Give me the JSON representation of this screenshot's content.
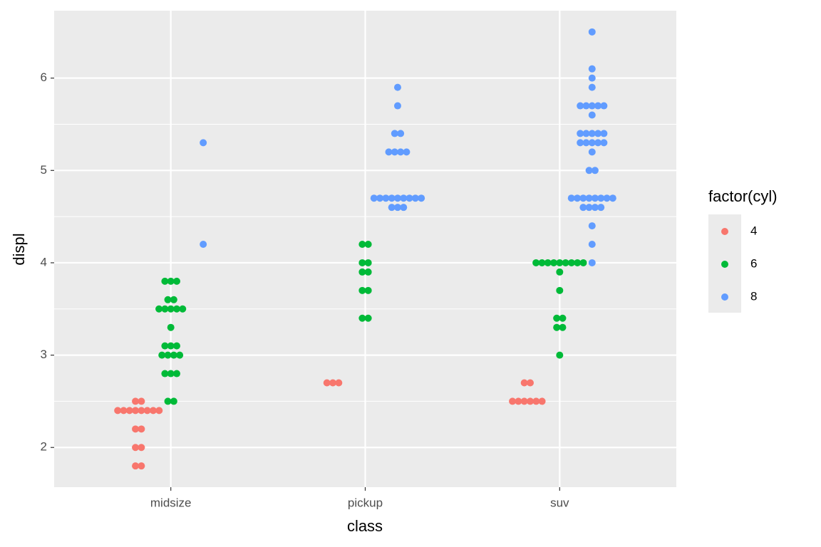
{
  "chart_data": {
    "type": "dodged-dot",
    "x_label": "class",
    "y_label": "displ",
    "categories": [
      "midsize",
      "pickup",
      "suv"
    ],
    "legend_title": "factor(cyl)",
    "legend_position": "right",
    "ylim": [
      1.57,
      6.73
    ],
    "yticks": [
      2,
      3,
      4,
      5,
      6
    ],
    "grid": true,
    "minor_grid": true,
    "series": [
      {
        "name": "4",
        "color": "#F8766D",
        "x": [
          "midsize",
          "midsize",
          "midsize",
          "midsize",
          "midsize",
          "midsize",
          "midsize",
          "midsize",
          "midsize",
          "midsize",
          "midsize",
          "midsize",
          "midsize",
          "midsize",
          "midsize",
          "midsize",
          "pickup",
          "pickup",
          "pickup",
          "suv",
          "suv",
          "suv",
          "suv",
          "suv",
          "suv",
          "suv",
          "suv"
        ],
        "values": [
          2.5,
          2.5,
          2.4,
          2.4,
          2.4,
          2.4,
          2.4,
          2.4,
          2.4,
          2.4,
          2.2,
          2.2,
          2.0,
          2.0,
          1.8,
          1.8,
          2.7,
          2.7,
          2.7,
          2.7,
          2.7,
          2.5,
          2.5,
          2.5,
          2.5,
          2.5,
          2.5
        ]
      },
      {
        "name": "6",
        "color": "#00BA38",
        "x": [
          "midsize",
          "midsize",
          "midsize",
          "midsize",
          "midsize",
          "midsize",
          "midsize",
          "midsize",
          "midsize",
          "midsize",
          "midsize",
          "midsize",
          "midsize",
          "midsize",
          "midsize",
          "midsize",
          "midsize",
          "midsize",
          "midsize",
          "midsize",
          "midsize",
          "midsize",
          "midsize",
          "pickup",
          "pickup",
          "pickup",
          "pickup",
          "pickup",
          "pickup",
          "pickup",
          "pickup",
          "pickup",
          "pickup",
          "suv",
          "suv",
          "suv",
          "suv",
          "suv",
          "suv",
          "suv",
          "suv",
          "suv",
          "suv",
          "suv",
          "suv",
          "suv",
          "suv",
          "suv",
          "suv"
        ],
        "values": [
          3.8,
          3.8,
          3.8,
          3.6,
          3.6,
          3.5,
          3.5,
          3.5,
          3.5,
          3.5,
          3.3,
          3.1,
          3.1,
          3.1,
          3.0,
          3.0,
          3.0,
          3.0,
          2.8,
          2.8,
          2.8,
          2.5,
          2.5,
          4.2,
          4.2,
          4.0,
          4.0,
          3.9,
          3.9,
          3.7,
          3.7,
          3.4,
          3.4,
          4.0,
          4.0,
          4.0,
          4.0,
          4.0,
          4.0,
          4.0,
          4.0,
          4.0,
          3.9,
          3.7,
          3.4,
          3.4,
          3.3,
          3.3,
          3.0
        ]
      },
      {
        "name": "8",
        "color": "#619CFF",
        "x": [
          "midsize",
          "midsize",
          "pickup",
          "pickup",
          "pickup",
          "pickup",
          "pickup",
          "pickup",
          "pickup",
          "pickup",
          "pickup",
          "pickup",
          "pickup",
          "pickup",
          "pickup",
          "pickup",
          "pickup",
          "pickup",
          "pickup",
          "pickup",
          "pickup",
          "pickup",
          "suv",
          "suv",
          "suv",
          "suv",
          "suv",
          "suv",
          "suv",
          "suv",
          "suv",
          "suv",
          "suv",
          "suv",
          "suv",
          "suv",
          "suv",
          "suv",
          "suv",
          "suv",
          "suv",
          "suv",
          "suv",
          "suv",
          "suv",
          "suv",
          "suv",
          "suv",
          "suv",
          "suv",
          "suv",
          "suv",
          "suv",
          "suv",
          "suv",
          "suv",
          "suv",
          "suv",
          "suv",
          "suv"
        ],
        "values": [
          5.3,
          4.2,
          5.9,
          5.7,
          5.4,
          5.4,
          5.2,
          5.2,
          5.2,
          5.2,
          4.7,
          4.7,
          4.7,
          4.7,
          4.7,
          4.7,
          4.7,
          4.7,
          4.7,
          4.6,
          4.6,
          4.6,
          6.5,
          6.1,
          6.0,
          5.9,
          5.7,
          5.7,
          5.7,
          5.7,
          5.7,
          5.6,
          5.4,
          5.4,
          5.4,
          5.4,
          5.4,
          5.3,
          5.3,
          5.3,
          5.3,
          5.3,
          5.2,
          5.0,
          5.0,
          4.7,
          4.7,
          4.7,
          4.7,
          4.7,
          4.7,
          4.7,
          4.7,
          4.6,
          4.6,
          4.6,
          4.6,
          4.4,
          4.2,
          4.0
        ]
      }
    ]
  }
}
